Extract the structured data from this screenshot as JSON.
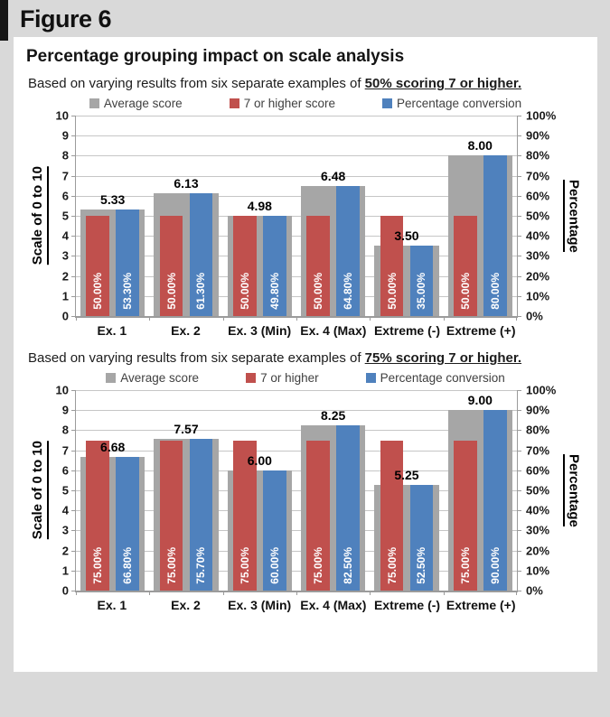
{
  "figure_label": "Figure 6",
  "panel": {
    "title": "Percentage grouping impact on scale analysis"
  },
  "colors": {
    "background": "#d9d9d9",
    "panel": "#ffffff",
    "accent_bar": "#161616",
    "gray_series": "#a6a6a6",
    "red_series": "#c0504d",
    "blue_series": "#4f81bd",
    "gridline": "#c6c6c6",
    "axis_line": "#9b9b9b",
    "legend_text": "#404040"
  },
  "chart_data": [
    {
      "type": "bar",
      "subtitle": {
        "prefix": "Based on varying results from six separate examples of ",
        "emphasis": "50% scoring 7 or higher."
      },
      "categories": [
        "Ex. 1",
        "Ex. 2",
        "Ex. 3 (Min)",
        "Ex. 4 (Max)",
        "Extreme (-)",
        "Extreme (+)"
      ],
      "left_axis": {
        "label": "Scale of 0 to 10",
        "min": 0,
        "max": 10,
        "ticks": [
          "10",
          "9",
          "8",
          "7",
          "6",
          "5",
          "4",
          "3",
          "2",
          "1",
          "0"
        ]
      },
      "right_axis": {
        "label": "Percentage",
        "min": 0,
        "max": 100,
        "ticks": [
          "100%",
          "90%",
          "80%",
          "70%",
          "60%",
          "50%",
          "40%",
          "30%",
          "20%",
          "10%",
          "0%"
        ]
      },
      "grid": true,
      "legend_position": "top",
      "series": [
        {
          "name": "Average score",
          "axis": "left",
          "color_key": "gray_series",
          "values": [
            5.33,
            6.13,
            4.98,
            6.48,
            3.5,
            8.0
          ],
          "data_labels": [
            "5.33",
            "6.13",
            "4.98",
            "6.48",
            "3.50",
            "8.00"
          ]
        },
        {
          "name": "7 or higher score",
          "axis": "right",
          "color_key": "red_series",
          "values": [
            50,
            50,
            50,
            50,
            50,
            50
          ],
          "bar_labels": [
            "50.00%",
            "50.00%",
            "50.00%",
            "50.00%",
            "50.00%",
            "50.00%"
          ]
        },
        {
          "name": "Percentage conversion",
          "axis": "right",
          "color_key": "blue_series",
          "values": [
            53.3,
            61.3,
            49.8,
            64.8,
            35.0,
            80.0
          ],
          "bar_labels": [
            "53.30%",
            "61.30%",
            "49.80%",
            "64.80%",
            "35.00%",
            "80.00%"
          ]
        }
      ]
    },
    {
      "type": "bar",
      "subtitle": {
        "prefix": "Based on varying results from six separate examples of ",
        "emphasis": "75% scoring 7 or higher."
      },
      "categories": [
        "Ex. 1",
        "Ex. 2",
        "Ex. 3 (Min)",
        "Ex. 4 (Max)",
        "Extreme (-)",
        "Extreme (+)"
      ],
      "left_axis": {
        "label": "Scale of 0 to 10",
        "min": 0,
        "max": 10,
        "ticks": [
          "10",
          "9",
          "8",
          "7",
          "6",
          "5",
          "4",
          "3",
          "2",
          "1",
          "0"
        ]
      },
      "right_axis": {
        "label": "Percentage",
        "min": 0,
        "max": 100,
        "ticks": [
          "100%",
          "90%",
          "80%",
          "70%",
          "60%",
          "50%",
          "40%",
          "30%",
          "20%",
          "10%",
          "0%"
        ]
      },
      "grid": true,
      "legend_position": "top",
      "series": [
        {
          "name": "Average score",
          "axis": "left",
          "color_key": "gray_series",
          "values": [
            6.68,
            7.57,
            6.0,
            8.25,
            5.25,
            9.0
          ],
          "data_labels": [
            "6.68",
            "7.57",
            "6.00",
            "8.25",
            "5.25",
            "9.00"
          ]
        },
        {
          "name": "7 or higher",
          "axis": "right",
          "color_key": "red_series",
          "values": [
            75,
            75,
            75,
            75,
            75,
            75
          ],
          "bar_labels": [
            "75.00%",
            "75.00%",
            "75.00%",
            "75.00%",
            "75.00%",
            "75.00%"
          ]
        },
        {
          "name": "Percentage conversion",
          "axis": "right",
          "color_key": "blue_series",
          "values": [
            66.8,
            75.7,
            60.0,
            82.5,
            52.5,
            90.0
          ],
          "bar_labels": [
            "66.80%",
            "75.70%",
            "60.00%",
            "82.50%",
            "52.50%",
            "90.00%"
          ]
        }
      ]
    }
  ]
}
